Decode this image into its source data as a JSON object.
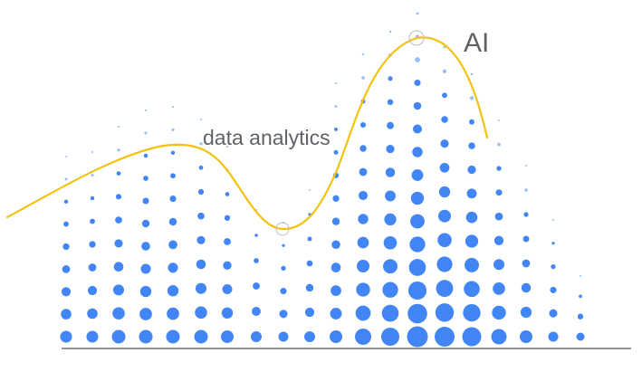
{
  "labels": {
    "data_analytics": "data analytics",
    "ai": "AI"
  },
  "colors": {
    "dots": "#4285f4",
    "curve": "#f4c20d",
    "baseline": "#555555",
    "text": "#5f6368",
    "highlight_ring": "#bbbbbb"
  }
}
